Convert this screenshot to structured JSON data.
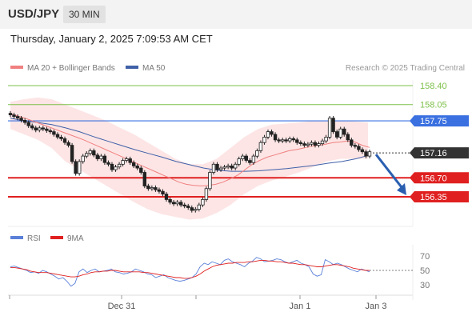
{
  "header": {
    "symbol": "USD/JPY",
    "timeframe": "30 MIN",
    "datetime": "Thursday, January 2, 2025 7:09:53 AM CET"
  },
  "legend": {
    "ma20_label": "MA 20 + Bollinger Bands",
    "ma50_label": "MA 50",
    "copyright": "Research © 2025 Trading Central",
    "rsi_label": "RSI",
    "ma9_label": "9MA"
  },
  "colors": {
    "ma20": "#f08080",
    "ma50": "#4060a8",
    "bollinger_fill": "#fde0e0",
    "resistance": "#7dc04a",
    "pivot": "#3a70e0",
    "support": "#e02020",
    "current": "#333333",
    "rsi": "#5a80d8",
    "rsi_ma9": "#e02020",
    "arrow": "#2a5fb0"
  },
  "chart_data": [
    {
      "type": "candlestick",
      "symbol": "USD/JPY",
      "timeframe": "30 MIN",
      "x_tick_labels": [
        "Dec 31",
        "Jan 1",
        "Jan 3"
      ],
      "ylim": [
        155.7,
        158.6
      ],
      "levels": [
        {
          "value": 158.4,
          "label": "158.40",
          "kind": "resistance"
        },
        {
          "value": 158.05,
          "label": "158.05",
          "kind": "resistance"
        },
        {
          "value": 157.75,
          "label": "157.75",
          "kind": "pivot"
        },
        {
          "value": 157.16,
          "label": "157.16",
          "kind": "current"
        },
        {
          "value": 156.7,
          "label": "156.70",
          "kind": "support"
        },
        {
          "value": 156.35,
          "label": "156.35",
          "kind": "support"
        }
      ],
      "close": [
        157.86,
        157.83,
        157.8,
        157.76,
        157.72,
        157.66,
        157.62,
        157.58,
        157.62,
        157.6,
        157.57,
        157.55,
        157.5,
        157.45,
        157.42,
        157.35,
        157.3,
        157.0,
        156.78,
        157.0,
        157.1,
        157.15,
        157.2,
        157.12,
        157.05,
        157.1,
        156.98,
        156.95,
        156.85,
        156.9,
        156.95,
        157.02,
        157.05,
        156.98,
        156.92,
        156.88,
        156.8,
        156.55,
        156.5,
        156.52,
        156.48,
        156.45,
        156.4,
        156.3,
        156.25,
        156.22,
        156.25,
        156.2,
        156.18,
        156.15,
        156.1,
        156.12,
        156.2,
        156.3,
        156.5,
        156.8,
        156.95,
        156.85,
        156.88,
        156.9,
        156.92,
        156.88,
        156.95,
        157.05,
        157.1,
        157.02,
        156.98,
        157.1,
        157.2,
        157.35,
        157.45,
        157.55,
        157.5,
        157.4,
        157.38,
        157.4,
        157.38,
        157.42,
        157.4,
        157.35,
        157.33,
        157.3,
        157.32,
        157.35,
        157.3,
        157.33,
        157.38,
        157.45,
        157.8,
        157.55,
        157.45,
        157.6,
        157.5,
        157.4,
        157.3,
        157.28,
        157.22,
        157.18,
        157.1,
        157.18
      ],
      "ma20": [
        157.88,
        157.84,
        157.8,
        157.75,
        157.7,
        157.65,
        157.6,
        157.55,
        157.5,
        157.45,
        157.4,
        157.34,
        157.28,
        157.22,
        157.16,
        157.1,
        157.04,
        156.98,
        156.92,
        156.86,
        156.8,
        156.74,
        156.68,
        156.62,
        156.58,
        156.56,
        156.55,
        156.56,
        156.58,
        156.62,
        156.68,
        156.75,
        156.85,
        156.95,
        157.02,
        157.08,
        157.12,
        157.16,
        157.2,
        157.22,
        157.25,
        157.28,
        157.3,
        157.32,
        157.35,
        157.36,
        157.38,
        157.36,
        157.3,
        157.26
      ],
      "ma50": [
        157.8,
        157.75,
        157.72,
        157.68,
        157.62,
        157.55,
        157.46,
        157.38,
        157.3,
        157.22,
        157.15,
        157.08,
        157.0,
        156.94,
        156.88,
        156.84,
        156.82,
        156.82,
        156.83,
        156.85,
        156.87,
        156.9,
        156.93,
        156.97,
        157.0,
        157.05,
        157.12
      ],
      "bb_upper": [
        158.1,
        158.15,
        158.18,
        158.15,
        158.05,
        157.95,
        157.85,
        157.75,
        157.62,
        157.5,
        157.35,
        157.2,
        157.05,
        156.95,
        156.95,
        157.05,
        157.25,
        157.45,
        157.6,
        157.68,
        157.7,
        157.72,
        157.75,
        157.75,
        157.75,
        157.74,
        157.72
      ],
      "bb_lower": [
        157.6,
        157.5,
        157.4,
        157.25,
        157.0,
        156.85,
        156.7,
        156.55,
        156.4,
        156.25,
        156.12,
        156.03,
        155.98,
        155.93,
        155.95,
        156.05,
        156.2,
        156.4,
        156.55,
        156.65,
        156.72,
        156.8,
        156.9,
        157.0,
        157.05,
        157.05,
        157.05
      ]
    },
    {
      "type": "line",
      "name": "RSI",
      "y_tick_labels": [
        "70",
        "50",
        "30"
      ],
      "ylim": [
        20,
        80
      ],
      "rsi": [
        55,
        56,
        54,
        52,
        50,
        47,
        48,
        46,
        50,
        48,
        45,
        42,
        38,
        40,
        35,
        28,
        32,
        48,
        52,
        47,
        50,
        52,
        48,
        49,
        50,
        52,
        48,
        47,
        45,
        46,
        48,
        52,
        50,
        48,
        45,
        44,
        40,
        42,
        44,
        40,
        38,
        36,
        35,
        36,
        38,
        40,
        45,
        55,
        60,
        58,
        62,
        60,
        58,
        64,
        66,
        62,
        60,
        58,
        55,
        60,
        63,
        68,
        66,
        62,
        63,
        64,
        66,
        65,
        62,
        60,
        62,
        64,
        60,
        58,
        55,
        45,
        42,
        44,
        65,
        62,
        58,
        60,
        58,
        55,
        52,
        50,
        48,
        52,
        50,
        48
      ],
      "ma9": [
        54,
        54,
        53,
        52,
        51,
        49,
        48,
        47,
        47,
        47,
        46,
        45,
        44,
        43,
        42,
        41,
        41,
        42,
        44,
        45,
        47,
        48,
        48,
        49,
        49,
        50,
        50,
        49,
        48,
        48,
        48,
        48,
        48,
        47,
        47,
        46,
        45,
        44,
        43,
        42,
        41,
        40,
        40,
        39,
        39,
        40,
        42,
        45,
        49,
        52,
        55,
        57,
        58,
        59,
        60,
        60,
        61,
        61,
        61,
        62,
        62,
        63,
        64,
        64,
        63,
        63,
        62,
        62,
        61,
        60,
        60,
        59,
        58,
        58,
        57,
        56,
        55,
        55,
        56,
        57,
        58,
        58,
        57,
        56,
        55,
        53,
        52,
        51,
        50,
        50
      ]
    }
  ]
}
